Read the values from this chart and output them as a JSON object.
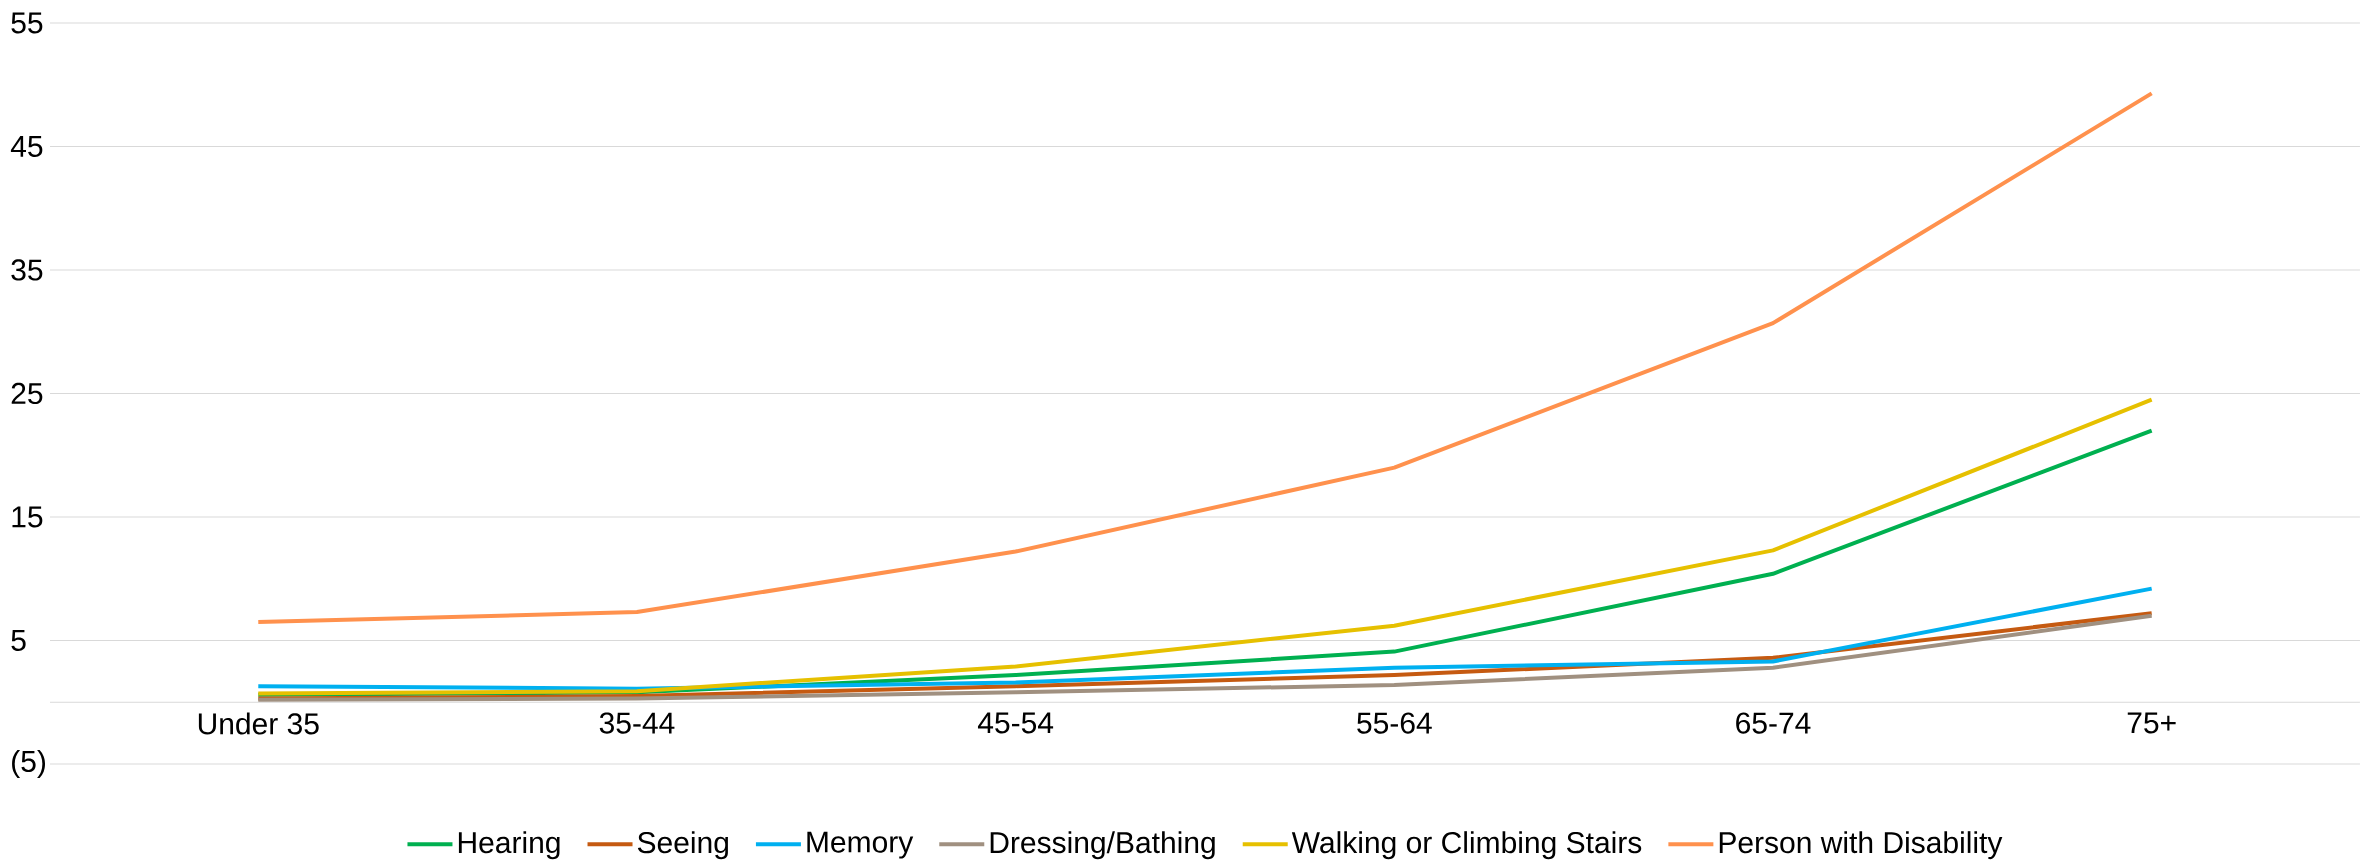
{
  "chart_data": {
    "type": "line",
    "categories": [
      "Under 35",
      "35-44",
      "45-54",
      "55-64",
      "65-74",
      "75+"
    ],
    "series": [
      {
        "name": "Hearing",
        "color": "#00b050",
        "values": [
          0.6,
          0.8,
          2.2,
          4.1,
          10.4,
          22.0
        ]
      },
      {
        "name": "Seeing",
        "color": "#c55a11",
        "values": [
          0.3,
          0.5,
          1.3,
          2.2,
          3.6,
          7.2
        ]
      },
      {
        "name": "Memory",
        "color": "#00b0f0",
        "values": [
          1.3,
          1.1,
          1.6,
          2.8,
          3.3,
          9.2
        ]
      },
      {
        "name": "Dressing/Bathing",
        "color": "#a09080",
        "values": [
          0.2,
          0.3,
          0.8,
          1.4,
          2.8,
          7.0
        ]
      },
      {
        "name": "Walking or Climbing Stairs",
        "color": "#e6c000",
        "values": [
          0.7,
          0.9,
          2.9,
          6.2,
          12.3,
          24.5
        ]
      },
      {
        "name": "Person with Disability",
        "color": "#ff914d",
        "values": [
          6.5,
          7.3,
          12.2,
          19.0,
          30.7,
          49.3
        ]
      }
    ],
    "ylim": [
      -5,
      55
    ],
    "yticks": [
      {
        "value": -5,
        "label": "(5)"
      },
      {
        "value": 0,
        "label": null
      },
      5,
      15,
      25,
      35,
      45,
      55
    ],
    "grid": "y",
    "legend": "bottom",
    "marker": "none",
    "line_style": "solid"
  }
}
